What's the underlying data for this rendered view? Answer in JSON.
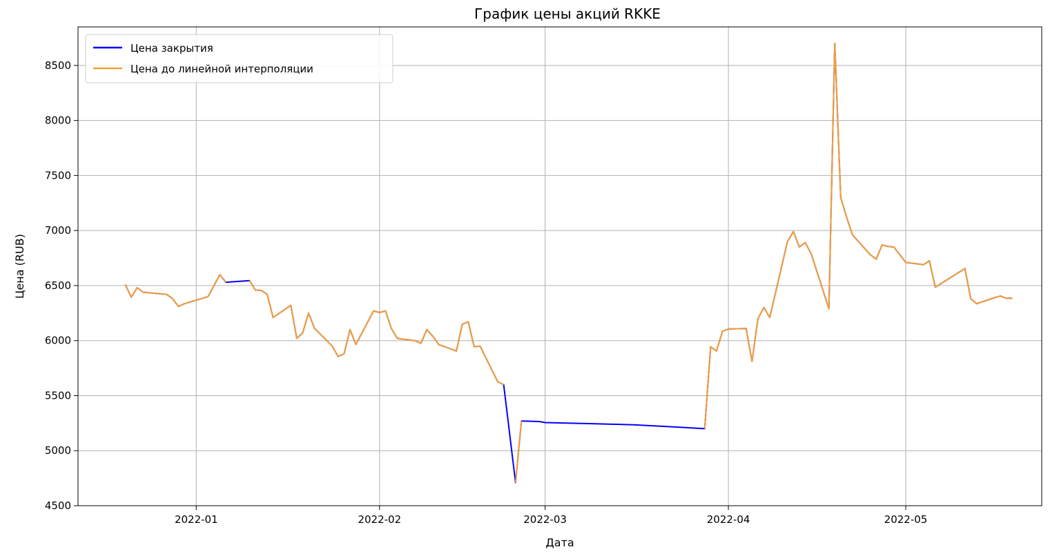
{
  "chart_data": {
    "type": "line",
    "title": "График цены акций RKKE",
    "xlabel": "Дата",
    "ylabel": "Цена (RUB)",
    "xlim": [
      "2021-12-12",
      "2022-05-24"
    ],
    "ylim": [
      4500,
      8850
    ],
    "x_ticks": [
      "2022-01-01",
      "2022-02-01",
      "2022-03-01",
      "2022-04-01",
      "2022-05-01"
    ],
    "x_tick_labels": [
      "2022-01",
      "2022-02",
      "2022-03",
      "2022-04",
      "2022-05"
    ],
    "y_ticks": [
      4500,
      5000,
      5500,
      6000,
      6500,
      7000,
      7500,
      8000,
      8500
    ],
    "y_tick_labels": [
      "4500",
      "5000",
      "5500",
      "6000",
      "6500",
      "7000",
      "7500",
      "8000",
      "8500"
    ],
    "grid": true,
    "legend": "top-left",
    "series": [
      {
        "name": "Цена закрытия",
        "color": "#0000ff",
        "points": [
          [
            "2021-12-20",
            6510
          ],
          [
            "2021-12-21",
            6395
          ],
          [
            "2021-12-22",
            6480
          ],
          [
            "2021-12-23",
            6440
          ],
          [
            "2021-12-27",
            6420
          ],
          [
            "2021-12-28",
            6380
          ],
          [
            "2021-12-29",
            6310
          ],
          [
            "2021-12-30",
            6335
          ],
          [
            "2022-01-03",
            6400
          ],
          [
            "2022-01-04",
            6500
          ],
          [
            "2022-01-05",
            6600
          ],
          [
            "2022-01-06",
            6530
          ],
          [
            "2022-01-10",
            6545
          ],
          [
            "2022-01-11",
            6460
          ],
          [
            "2022-01-12",
            6455
          ],
          [
            "2022-01-13",
            6420
          ],
          [
            "2022-01-14",
            6210
          ],
          [
            "2022-01-17",
            6320
          ],
          [
            "2022-01-18",
            6020
          ],
          [
            "2022-01-19",
            6070
          ],
          [
            "2022-01-20",
            6250
          ],
          [
            "2022-01-21",
            6110
          ],
          [
            "2022-01-24",
            5950
          ],
          [
            "2022-01-25",
            5855
          ],
          [
            "2022-01-26",
            5880
          ],
          [
            "2022-01-27",
            6100
          ],
          [
            "2022-01-28",
            5965
          ],
          [
            "2022-01-31",
            6270
          ],
          [
            "2022-02-01",
            6255
          ],
          [
            "2022-02-02",
            6270
          ],
          [
            "2022-02-03",
            6110
          ],
          [
            "2022-02-04",
            6020
          ],
          [
            "2022-02-07",
            6000
          ],
          [
            "2022-02-08",
            5975
          ],
          [
            "2022-02-09",
            6100
          ],
          [
            "2022-02-10",
            6040
          ],
          [
            "2022-02-11",
            5965
          ],
          [
            "2022-02-14",
            5905
          ],
          [
            "2022-02-15",
            6150
          ],
          [
            "2022-02-16",
            6170
          ],
          [
            "2022-02-17",
            5945
          ],
          [
            "2022-02-18",
            5950
          ],
          [
            "2022-02-21",
            5625
          ],
          [
            "2022-02-22",
            5600
          ],
          [
            "2022-02-24",
            4710
          ],
          [
            "2022-02-25",
            5270
          ],
          [
            "2022-02-28",
            5265
          ],
          [
            "2022-03-01",
            5255
          ],
          [
            "2022-03-09",
            5245
          ],
          [
            "2022-03-16",
            5235
          ],
          [
            "2022-03-23",
            5215
          ],
          [
            "2022-03-28",
            5200
          ],
          [
            "2022-03-29",
            5945
          ],
          [
            "2022-03-30",
            5905
          ],
          [
            "2022-03-31",
            6085
          ],
          [
            "2022-04-01",
            6105
          ],
          [
            "2022-04-04",
            6110
          ],
          [
            "2022-04-05",
            5810
          ],
          [
            "2022-04-06",
            6200
          ],
          [
            "2022-04-07",
            6300
          ],
          [
            "2022-04-08",
            6210
          ],
          [
            "2022-04-11",
            6900
          ],
          [
            "2022-04-12",
            6990
          ],
          [
            "2022-04-13",
            6850
          ],
          [
            "2022-04-14",
            6890
          ],
          [
            "2022-04-15",
            6790
          ],
          [
            "2022-04-18",
            6290
          ],
          [
            "2022-04-19",
            8700
          ],
          [
            "2022-04-20",
            7300
          ],
          [
            "2022-04-21",
            7120
          ],
          [
            "2022-04-22",
            6960
          ],
          [
            "2022-04-25",
            6780
          ],
          [
            "2022-04-26",
            6740
          ],
          [
            "2022-04-27",
            6870
          ],
          [
            "2022-04-28",
            6855
          ],
          [
            "2022-04-29",
            6850
          ],
          [
            "2022-05-01",
            6710
          ],
          [
            "2022-05-04",
            6690
          ],
          [
            "2022-05-05",
            6725
          ],
          [
            "2022-05-06",
            6485
          ],
          [
            "2022-05-11",
            6655
          ],
          [
            "2022-05-12",
            6380
          ],
          [
            "2022-05-13",
            6335
          ],
          [
            "2022-05-16",
            6390
          ],
          [
            "2022-05-17",
            6405
          ],
          [
            "2022-05-18",
            6385
          ],
          [
            "2022-05-19",
            6385
          ]
        ]
      },
      {
        "name": "Цена до линейной интерполяции",
        "color": "#f5a033",
        "points": [
          [
            "2021-12-20",
            6510
          ],
          [
            "2021-12-21",
            6395
          ],
          [
            "2021-12-22",
            6480
          ],
          [
            "2021-12-23",
            6440
          ],
          [
            "2021-12-27",
            6420
          ],
          [
            "2021-12-28",
            6380
          ],
          [
            "2021-12-29",
            6310
          ],
          [
            "2021-12-30",
            6335
          ],
          [
            "2022-01-03",
            6400
          ],
          [
            "2022-01-04",
            6500
          ],
          [
            "2022-01-05",
            6600
          ],
          [
            "2022-01-06",
            6530
          ],
          null,
          [
            "2022-01-10",
            6545
          ],
          [
            "2022-01-11",
            6460
          ],
          [
            "2022-01-12",
            6455
          ],
          [
            "2022-01-13",
            6420
          ],
          [
            "2022-01-14",
            6210
          ],
          [
            "2022-01-17",
            6320
          ],
          [
            "2022-01-18",
            6020
          ],
          [
            "2022-01-19",
            6070
          ],
          [
            "2022-01-20",
            6250
          ],
          [
            "2022-01-21",
            6110
          ],
          [
            "2022-01-24",
            5950
          ],
          [
            "2022-01-25",
            5855
          ],
          [
            "2022-01-26",
            5880
          ],
          [
            "2022-01-27",
            6100
          ],
          [
            "2022-01-28",
            5965
          ],
          [
            "2022-01-31",
            6270
          ],
          [
            "2022-02-01",
            6255
          ],
          [
            "2022-02-02",
            6270
          ],
          [
            "2022-02-03",
            6110
          ],
          [
            "2022-02-04",
            6020
          ],
          [
            "2022-02-07",
            6000
          ],
          [
            "2022-02-08",
            5975
          ],
          [
            "2022-02-09",
            6100
          ],
          [
            "2022-02-10",
            6040
          ],
          [
            "2022-02-11",
            5965
          ],
          [
            "2022-02-14",
            5905
          ],
          [
            "2022-02-15",
            6150
          ],
          [
            "2022-02-16",
            6170
          ],
          [
            "2022-02-17",
            5945
          ],
          [
            "2022-02-18",
            5950
          ],
          [
            "2022-02-21",
            5625
          ],
          [
            "2022-02-22",
            5600
          ],
          null,
          [
            "2022-02-24",
            4710
          ],
          [
            "2022-02-25",
            5270
          ],
          null,
          [
            "2022-03-28",
            5200
          ],
          [
            "2022-03-29",
            5945
          ],
          [
            "2022-03-30",
            5905
          ],
          [
            "2022-03-31",
            6085
          ],
          [
            "2022-04-01",
            6105
          ],
          [
            "2022-04-04",
            6110
          ],
          [
            "2022-04-05",
            5810
          ],
          [
            "2022-04-06",
            6200
          ],
          [
            "2022-04-07",
            6300
          ],
          [
            "2022-04-08",
            6210
          ],
          [
            "2022-04-11",
            6900
          ],
          [
            "2022-04-12",
            6990
          ],
          [
            "2022-04-13",
            6850
          ],
          [
            "2022-04-14",
            6890
          ],
          [
            "2022-04-15",
            6790
          ],
          [
            "2022-04-18",
            6290
          ],
          [
            "2022-04-19",
            8700
          ],
          [
            "2022-04-20",
            7300
          ],
          [
            "2022-04-21",
            7120
          ],
          [
            "2022-04-22",
            6960
          ],
          [
            "2022-04-25",
            6780
          ],
          [
            "2022-04-26",
            6740
          ],
          [
            "2022-04-27",
            6870
          ],
          [
            "2022-04-28",
            6855
          ],
          [
            "2022-04-29",
            6850
          ],
          [
            "2022-05-01",
            6710
          ],
          [
            "2022-05-04",
            6690
          ],
          [
            "2022-05-05",
            6725
          ],
          [
            "2022-05-06",
            6485
          ],
          [
            "2022-05-11",
            6655
          ],
          [
            "2022-05-12",
            6380
          ],
          [
            "2022-05-13",
            6335
          ],
          [
            "2022-05-16",
            6390
          ],
          [
            "2022-05-17",
            6405
          ],
          [
            "2022-05-18",
            6385
          ],
          [
            "2022-05-19",
            6385
          ]
        ]
      }
    ]
  }
}
